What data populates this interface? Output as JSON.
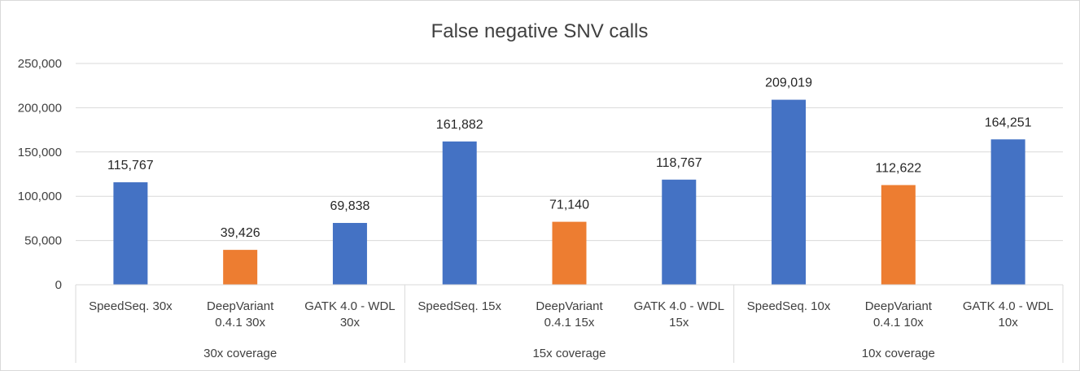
{
  "chart_data": {
    "type": "bar",
    "title": "False negative SNV calls",
    "xlabel": "",
    "ylabel": "",
    "ylim": [
      0,
      250000
    ],
    "yticks": [
      "0",
      "50,000",
      "100,000",
      "150,000",
      "200,000",
      "250,000"
    ],
    "grid": true,
    "legend": "none",
    "groups": [
      {
        "label": "30x coverage",
        "bars": [
          {
            "label": [
              "SpeedSeq. 30x"
            ],
            "value": 115767,
            "value_label": "115,767",
            "color": "#4472c4"
          },
          {
            "label": [
              "DeepVariant",
              "0.4.1 30x"
            ],
            "value": 39426,
            "value_label": "39,426",
            "color": "#ed7d31"
          },
          {
            "label": [
              "GATK 4.0 - WDL",
              "30x"
            ],
            "value": 69838,
            "value_label": "69,838",
            "color": "#4472c4"
          }
        ]
      },
      {
        "label": "15x coverage",
        "bars": [
          {
            "label": [
              "SpeedSeq. 15x"
            ],
            "value": 161882,
            "value_label": "161,882",
            "color": "#4472c4"
          },
          {
            "label": [
              "DeepVariant",
              "0.4.1 15x"
            ],
            "value": 71140,
            "value_label": "71,140",
            "color": "#ed7d31"
          },
          {
            "label": [
              "GATK 4.0 - WDL",
              "15x"
            ],
            "value": 118767,
            "value_label": "118,767",
            "color": "#4472c4"
          }
        ]
      },
      {
        "label": "10x coverage",
        "bars": [
          {
            "label": [
              "SpeedSeq. 10x"
            ],
            "value": 209019,
            "value_label": "209,019",
            "color": "#4472c4"
          },
          {
            "label": [
              "DeepVariant",
              "0.4.1 10x"
            ],
            "value": 112622,
            "value_label": "112,622",
            "color": "#ed7d31"
          },
          {
            "label": [
              "GATK 4.0 - WDL",
              "10x"
            ],
            "value": 164251,
            "value_label": "164,251",
            "color": "#4472c4"
          }
        ]
      }
    ]
  }
}
